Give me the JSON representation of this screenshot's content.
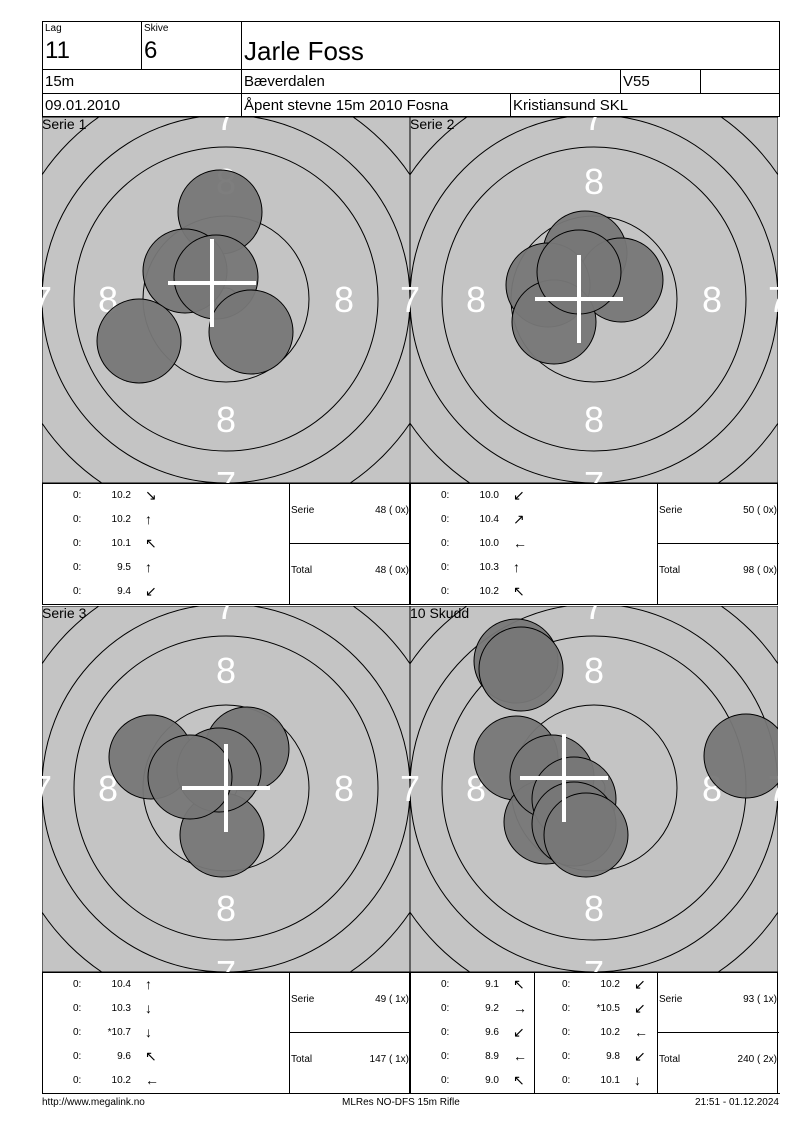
{
  "header": {
    "lag_caption": "Lag",
    "lag": "11",
    "skive_caption": "Skive",
    "skive": "6",
    "name": "Jarle Foss",
    "distance": "15m",
    "club": "Bæverdalen",
    "class": "V55",
    "extra": "",
    "date": "09.01.2010",
    "event": "Åpent stevne 15m 2010 Fosna",
    "organizer": "Kristiansund SKL"
  },
  "colors": {
    "target_bg": "#c4c4c4",
    "shot_fill": "#777777",
    "ring": "#000000",
    "cross": "#ffffff"
  },
  "panels": [
    {
      "title": "Serie 1",
      "shots": [
        {
          "prefix": "0:",
          "value": "10.2",
          "arrow": "↘"
        },
        {
          "prefix": "0:",
          "value": "10.2",
          "arrow": "↑"
        },
        {
          "prefix": "0:",
          "value": "10.1",
          "arrow": "↖"
        },
        {
          "prefix": "0:",
          "value": "9.5",
          "arrow": "↑"
        },
        {
          "prefix": "0:",
          "value": "9.4",
          "arrow": "↙"
        }
      ],
      "serie_label": "Serie",
      "serie_value": "48 ( 0x)",
      "total_label": "Total",
      "total_value": "48 ( 0x)"
    },
    {
      "title": "Serie 2",
      "shots": [
        {
          "prefix": "0:",
          "value": "10.0",
          "arrow": "↙"
        },
        {
          "prefix": "0:",
          "value": "10.4",
          "arrow": "↗"
        },
        {
          "prefix": "0:",
          "value": "10.0",
          "arrow": "←"
        },
        {
          "prefix": "0:",
          "value": "10.3",
          "arrow": "↑"
        },
        {
          "prefix": "0:",
          "value": "10.2",
          "arrow": "↖"
        }
      ],
      "serie_label": "Serie",
      "serie_value": "50 ( 0x)",
      "total_label": "Total",
      "total_value": "98 ( 0x)"
    },
    {
      "title": "Serie 3",
      "shots": [
        {
          "prefix": "0:",
          "value": "10.4",
          "arrow": "↑"
        },
        {
          "prefix": "0:",
          "value": "10.3",
          "arrow": "↓"
        },
        {
          "prefix": "0:",
          "value": "*10.7",
          "arrow": "↓"
        },
        {
          "prefix": "0:",
          "value": "9.6",
          "arrow": "↖"
        },
        {
          "prefix": "0:",
          "value": "10.2",
          "arrow": "←"
        }
      ],
      "serie_label": "Serie",
      "serie_value": "49 ( 1x)",
      "total_label": "Total",
      "total_value": "147 ( 1x)"
    },
    {
      "title": "10 Skudd",
      "shots": [
        {
          "prefix": "0:",
          "value": "9.1",
          "arrow": "↖"
        },
        {
          "prefix": "0:",
          "value": "9.2",
          "arrow": "→"
        },
        {
          "prefix": "0:",
          "value": "9.6",
          "arrow": "↙"
        },
        {
          "prefix": "0:",
          "value": "8.9",
          "arrow": "←"
        },
        {
          "prefix": "0:",
          "value": "9.0",
          "arrow": "↖"
        }
      ],
      "shots2": [
        {
          "prefix": "0:",
          "value": "10.2",
          "arrow": "↙"
        },
        {
          "prefix": "0:",
          "value": "*10.5",
          "arrow": "↙"
        },
        {
          "prefix": "0:",
          "value": "10.2",
          "arrow": "←"
        },
        {
          "prefix": "0:",
          "value": "9.8",
          "arrow": "↙"
        },
        {
          "prefix": "0:",
          "value": "10.1",
          "arrow": "↓"
        }
      ],
      "serie_label": "Serie",
      "serie_value": "93 ( 1x)",
      "total_label": "Total",
      "total_value": "240 ( 2x)"
    }
  ],
  "ring_numbers": {
    "eight": "8",
    "seven": "7"
  },
  "footer": {
    "left": "http://www.megalink.no",
    "center": "MLRes NO-DFS 15m Rifle",
    "right": "21:51 - 01.12.2024"
  }
}
